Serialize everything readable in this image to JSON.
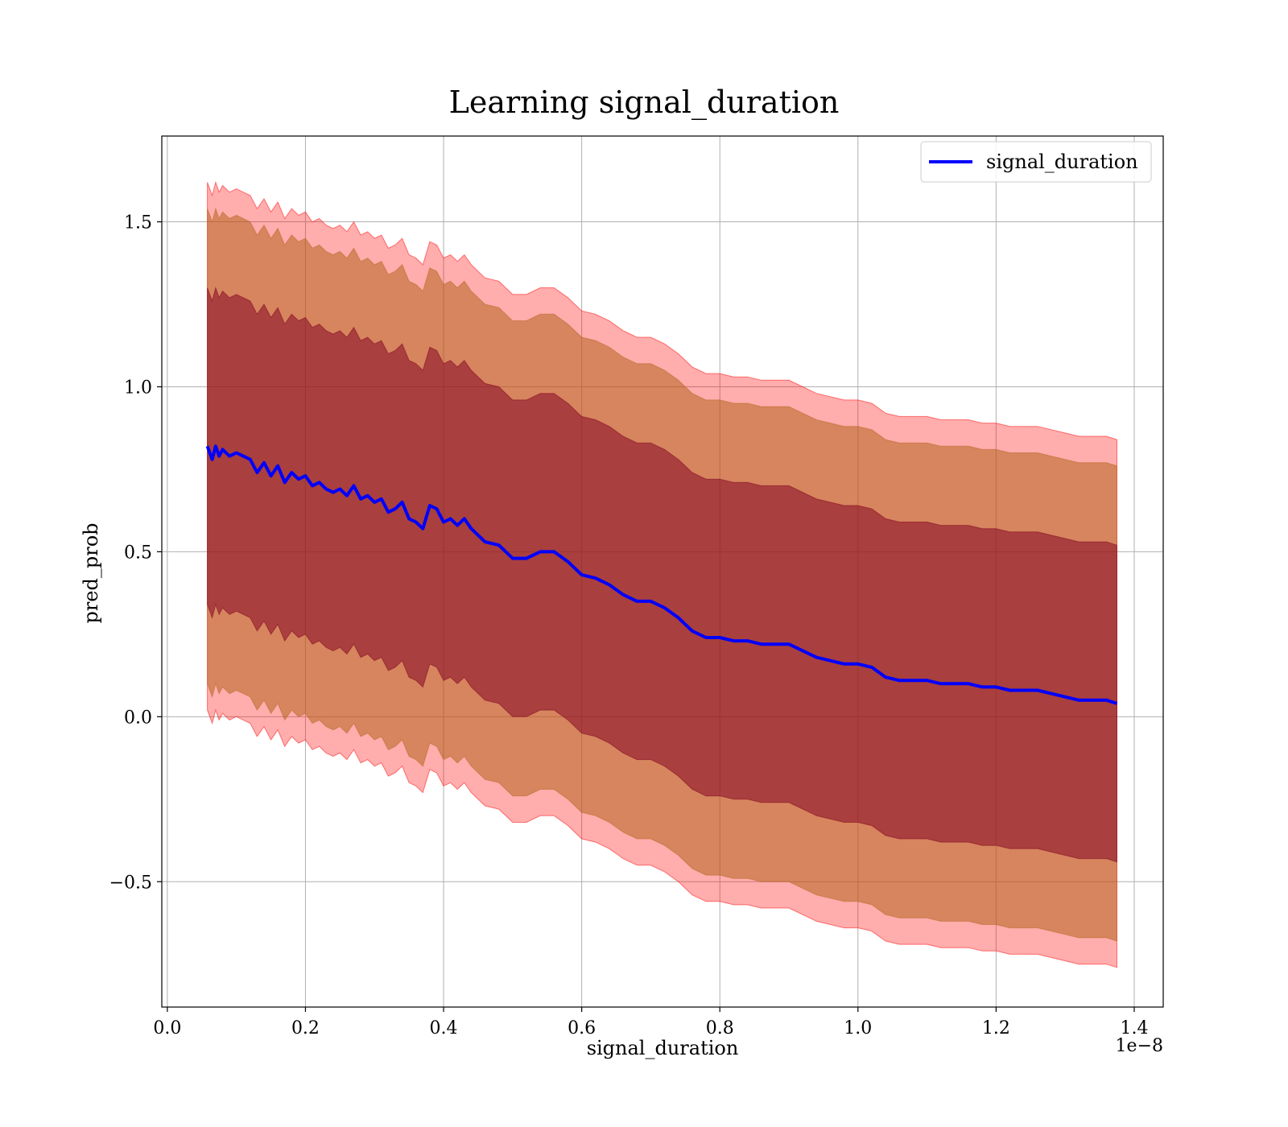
{
  "chart_data": {
    "type": "line",
    "title": "Learning signal_duration",
    "xlabel": "signal_duration",
    "ylabel": "pred_prob",
    "x_offset_text": "1e−8",
    "x_ticks": [
      0.0,
      0.2,
      0.4,
      0.6,
      0.8,
      1.0,
      1.2,
      1.4
    ],
    "x_tick_labels": [
      "0.0",
      "0.2",
      "0.4",
      "0.6",
      "0.8",
      "1.0",
      "1.2",
      "1.4"
    ],
    "y_ticks": [
      -0.5,
      0.0,
      0.5,
      1.0,
      1.5
    ],
    "y_tick_labels": [
      "−0.5",
      "0.0",
      "0.5",
      "1.0",
      "1.5"
    ],
    "xlim": [
      -0.008,
      1.442
    ],
    "ylim": [
      -0.88,
      1.76
    ],
    "grid": true,
    "legend_position": "top-right",
    "colors": {
      "line": "#0000ff",
      "band_outer": "#ff0000",
      "band_middle": "#b5651d",
      "band_inner": "#800020"
    },
    "series": [
      {
        "name": "signal_duration",
        "x": [
          0.058,
          0.065,
          0.07,
          0.075,
          0.08,
          0.09,
          0.1,
          0.11,
          0.12,
          0.13,
          0.14,
          0.15,
          0.16,
          0.17,
          0.18,
          0.19,
          0.2,
          0.21,
          0.22,
          0.23,
          0.24,
          0.25,
          0.26,
          0.27,
          0.28,
          0.29,
          0.3,
          0.31,
          0.32,
          0.33,
          0.34,
          0.35,
          0.36,
          0.37,
          0.38,
          0.39,
          0.4,
          0.41,
          0.42,
          0.43,
          0.44,
          0.46,
          0.48,
          0.5,
          0.52,
          0.54,
          0.56,
          0.58,
          0.6,
          0.62,
          0.64,
          0.66,
          0.68,
          0.7,
          0.72,
          0.74,
          0.76,
          0.78,
          0.8,
          0.82,
          0.84,
          0.86,
          0.88,
          0.9,
          0.92,
          0.94,
          0.96,
          0.98,
          1.0,
          1.02,
          1.04,
          1.06,
          1.08,
          1.1,
          1.12,
          1.14,
          1.16,
          1.18,
          1.2,
          1.22,
          1.24,
          1.26,
          1.28,
          1.3,
          1.32,
          1.34,
          1.36,
          1.375
        ],
        "values": [
          0.82,
          0.78,
          0.82,
          0.79,
          0.81,
          0.79,
          0.8,
          0.79,
          0.78,
          0.74,
          0.77,
          0.73,
          0.76,
          0.71,
          0.74,
          0.72,
          0.73,
          0.7,
          0.71,
          0.69,
          0.68,
          0.69,
          0.67,
          0.7,
          0.66,
          0.67,
          0.65,
          0.66,
          0.62,
          0.63,
          0.65,
          0.6,
          0.59,
          0.57,
          0.64,
          0.63,
          0.59,
          0.6,
          0.58,
          0.6,
          0.57,
          0.53,
          0.52,
          0.48,
          0.48,
          0.5,
          0.5,
          0.47,
          0.43,
          0.42,
          0.4,
          0.37,
          0.35,
          0.35,
          0.33,
          0.3,
          0.26,
          0.24,
          0.24,
          0.23,
          0.23,
          0.22,
          0.22,
          0.22,
          0.2,
          0.18,
          0.17,
          0.16,
          0.16,
          0.15,
          0.12,
          0.11,
          0.11,
          0.11,
          0.1,
          0.1,
          0.1,
          0.09,
          0.09,
          0.08,
          0.08,
          0.08,
          0.07,
          0.06,
          0.05,
          0.05,
          0.05,
          0.04
        ]
      }
    ],
    "bands": [
      {
        "label": "outer",
        "offset": 0.8,
        "color": "#ff0000",
        "opacity": 0.32
      },
      {
        "label": "middle",
        "offset": 0.72,
        "color": "#b5651d",
        "opacity": 0.55
      },
      {
        "label": "inner",
        "offset": 0.48,
        "color": "#800020",
        "opacity": 0.52
      }
    ]
  }
}
